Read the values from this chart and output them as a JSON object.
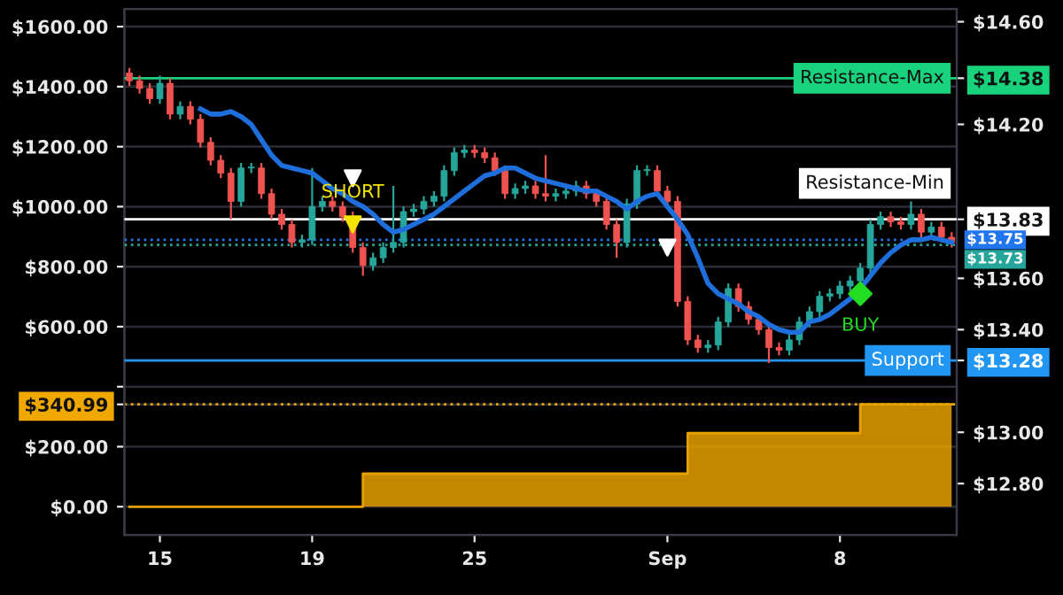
{
  "chart_data": {
    "type": "candlestick",
    "categories": [
      null,
      null,
      null,
      "15",
      null,
      null,
      null,
      null,
      null,
      null,
      null,
      null,
      null,
      null,
      null,
      null,
      null,
      null,
      "19",
      null,
      null,
      null,
      null,
      null,
      null,
      null,
      null,
      null,
      null,
      null,
      null,
      null,
      null,
      null,
      "25",
      null,
      null,
      null,
      null,
      null,
      null,
      null,
      null,
      null,
      null,
      null,
      null,
      null,
      null,
      null,
      null,
      null,
      null,
      "Sep",
      null,
      null,
      null,
      null,
      null,
      null,
      null,
      null,
      null,
      null,
      null,
      null,
      null,
      null,
      null,
      null,
      "8",
      null,
      null,
      null,
      null,
      null,
      null,
      null,
      null,
      null,
      null,
      null
    ],
    "ylim": [
      12.6,
      14.65
    ],
    "yticks": [
      {
        "value": 12.8,
        "label": "$12.80"
      },
      {
        "value": 13.0,
        "label": "$13.00"
      },
      {
        "value": 13.28,
        "label": "$13.28"
      },
      {
        "value": 13.4,
        "label": "$13.40"
      },
      {
        "value": 13.6,
        "label": "$13.60"
      },
      {
        "value": 13.83,
        "label": "$13.83"
      },
      {
        "value": 14.2,
        "label": "$14.20"
      },
      {
        "value": 14.38,
        "label": "$14.38"
      },
      {
        "value": 14.6,
        "label": "$14.60"
      }
    ],
    "y2lim": [
      -94,
      1659
    ],
    "y2ticks": [
      {
        "value": 0,
        "label": "$0.00"
      },
      {
        "value": 200,
        "label": "$200.00"
      },
      {
        "value": 340.99,
        "label": "$340.99"
      },
      {
        "value": 400,
        "label": null
      },
      {
        "value": 600,
        "label": "$600.00"
      },
      {
        "value": 800,
        "label": "$800.00"
      },
      {
        "value": 1000,
        "label": "$1000.00"
      },
      {
        "value": 1200,
        "label": "$1200.00"
      },
      {
        "value": 1400,
        "label": "$1400.00"
      },
      {
        "value": 1600,
        "label": "$1600.00"
      }
    ],
    "grid": true,
    "ohlc": [
      [
        14.4,
        14.42,
        14.35,
        14.37
      ],
      [
        14.37,
        14.39,
        14.32,
        14.34
      ],
      [
        14.34,
        14.36,
        14.28,
        14.3
      ],
      [
        14.3,
        14.39,
        14.28,
        14.36
      ],
      [
        14.36,
        14.38,
        14.22,
        14.24
      ],
      [
        14.24,
        14.29,
        14.22,
        14.27
      ],
      [
        14.27,
        14.29,
        14.2,
        14.22
      ],
      [
        14.22,
        14.24,
        14.11,
        14.13
      ],
      [
        14.13,
        14.15,
        14.04,
        14.06
      ],
      [
        14.06,
        14.08,
        13.99,
        14.01
      ],
      [
        14.01,
        14.03,
        13.83,
        13.9
      ],
      [
        13.9,
        14.05,
        13.88,
        14.03
      ],
      [
        14.03,
        14.05,
        14.01,
        14.03
      ],
      [
        14.03,
        14.05,
        13.91,
        13.93
      ],
      [
        13.93,
        13.95,
        13.83,
        13.85
      ],
      [
        13.85,
        13.87,
        13.79,
        13.81
      ],
      [
        13.81,
        13.83,
        13.72,
        13.74
      ],
      [
        13.74,
        13.77,
        13.72,
        13.75
      ],
      [
        13.75,
        14.03,
        13.73,
        13.88
      ],
      [
        13.88,
        13.92,
        13.86,
        13.9
      ],
      [
        13.9,
        13.92,
        13.86,
        13.88
      ],
      [
        13.88,
        13.9,
        13.82,
        13.84
      ],
      [
        13.84,
        13.86,
        13.7,
        13.72
      ],
      [
        13.72,
        13.74,
        13.61,
        13.65
      ],
      [
        13.65,
        13.7,
        13.63,
        13.68
      ],
      [
        13.68,
        13.74,
        13.66,
        13.72
      ],
      [
        13.72,
        13.96,
        13.7,
        13.74
      ],
      [
        13.74,
        13.88,
        13.72,
        13.86
      ],
      [
        13.86,
        13.89,
        13.84,
        13.87
      ],
      [
        13.87,
        13.92,
        13.85,
        13.9
      ],
      [
        13.9,
        13.94,
        13.88,
        13.92
      ],
      [
        13.92,
        14.04,
        13.9,
        14.02
      ],
      [
        14.02,
        14.11,
        14.0,
        14.09
      ],
      [
        14.09,
        14.12,
        14.07,
        14.1
      ],
      [
        14.1,
        14.12,
        14.07,
        14.09
      ],
      [
        14.09,
        14.11,
        14.05,
        14.07
      ],
      [
        14.07,
        14.09,
        14.0,
        14.02
      ],
      [
        14.02,
        14.04,
        13.91,
        13.93
      ],
      [
        13.93,
        13.97,
        13.91,
        13.95
      ],
      [
        13.95,
        13.98,
        13.93,
        13.96
      ],
      [
        13.96,
        13.98,
        13.91,
        13.93
      ],
      [
        13.93,
        14.08,
        13.9,
        13.92
      ],
      [
        13.92,
        13.95,
        13.9,
        13.93
      ],
      [
        13.93,
        13.96,
        13.91,
        13.94
      ],
      [
        13.94,
        13.98,
        13.92,
        13.96
      ],
      [
        13.96,
        13.98,
        13.91,
        13.93
      ],
      [
        13.93,
        13.95,
        13.88,
        13.9
      ],
      [
        13.9,
        13.92,
        13.79,
        13.81
      ],
      [
        13.81,
        13.83,
        13.68,
        13.74
      ],
      [
        13.74,
        13.91,
        13.72,
        13.89
      ],
      [
        13.89,
        14.04,
        13.87,
        14.02
      ],
      [
        14.02,
        14.04,
        14.0,
        14.02
      ],
      [
        14.02,
        14.04,
        13.92,
        13.94
      ],
      [
        13.94,
        13.96,
        13.88,
        13.9
      ],
      [
        13.9,
        13.92,
        13.49,
        13.51
      ],
      [
        13.51,
        13.53,
        13.34,
        13.36
      ],
      [
        13.36,
        13.38,
        13.31,
        13.33
      ],
      [
        13.33,
        13.36,
        13.31,
        13.34
      ],
      [
        13.34,
        13.45,
        13.32,
        13.43
      ],
      [
        13.43,
        13.58,
        13.41,
        13.56
      ],
      [
        13.56,
        13.58,
        13.47,
        13.49
      ],
      [
        13.49,
        13.51,
        13.42,
        13.44
      ],
      [
        13.44,
        13.46,
        13.38,
        13.4
      ],
      [
        13.4,
        13.42,
        13.27,
        13.33
      ],
      [
        13.33,
        13.35,
        13.3,
        13.32
      ],
      [
        13.32,
        13.38,
        13.3,
        13.36
      ],
      [
        13.36,
        13.45,
        13.34,
        13.43
      ],
      [
        13.43,
        13.49,
        13.41,
        13.47
      ],
      [
        13.47,
        13.55,
        13.45,
        13.53
      ],
      [
        13.53,
        13.56,
        13.51,
        13.54
      ],
      [
        13.54,
        13.59,
        13.52,
        13.57
      ],
      [
        13.57,
        13.61,
        13.55,
        13.59
      ],
      [
        13.59,
        13.66,
        13.57,
        13.64
      ],
      [
        13.64,
        13.83,
        13.62,
        13.81
      ],
      [
        13.81,
        13.86,
        13.79,
        13.84
      ],
      [
        13.84,
        13.86,
        13.8,
        13.82
      ],
      [
        13.82,
        13.84,
        13.79,
        13.81
      ],
      [
        13.81,
        13.9,
        13.79,
        13.85
      ],
      [
        13.85,
        13.87,
        13.76,
        13.78
      ],
      [
        13.78,
        13.82,
        13.76,
        13.8
      ],
      [
        13.8,
        13.82,
        13.74,
        13.76
      ],
      [
        13.76,
        13.78,
        13.72,
        13.74
      ]
    ],
    "series": [
      {
        "type": "line",
        "color": "#1e6fdc",
        "values": [
          null,
          null,
          null,
          null,
          null,
          null,
          null,
          14.26,
          14.24,
          14.24,
          14.25,
          14.23,
          14.2,
          14.14,
          14.08,
          14.04,
          14.03,
          14.02,
          14.01,
          13.98,
          13.95,
          13.93,
          13.9,
          13.88,
          13.85,
          13.81,
          13.78,
          13.79,
          13.81,
          13.83,
          13.85,
          13.88,
          13.91,
          13.94,
          13.97,
          14.0,
          14.01,
          14.03,
          14.03,
          14.01,
          13.99,
          13.98,
          13.97,
          13.96,
          13.95,
          13.94,
          13.94,
          13.92,
          13.9,
          13.87,
          13.9,
          13.92,
          13.93,
          13.88,
          13.83,
          13.77,
          13.68,
          13.58,
          13.54,
          13.52,
          13.5,
          13.47,
          13.45,
          13.42,
          13.4,
          13.39,
          13.39,
          13.43,
          13.44,
          13.46,
          13.49,
          13.52,
          13.56,
          13.61,
          13.66,
          13.7,
          13.73,
          13.75,
          13.75,
          13.76,
          13.75,
          13.74
        ]
      },
      {
        "type": "step",
        "axis": "y2",
        "color": "#e6a000",
        "values": [
          0,
          0,
          0,
          0,
          0,
          0,
          0,
          0,
          0,
          0,
          0,
          0,
          0,
          0,
          0,
          0,
          0,
          0,
          0,
          0,
          0,
          0,
          0,
          110,
          110,
          110,
          110,
          110,
          110,
          110,
          110,
          110,
          110,
          110,
          110,
          110,
          110,
          110,
          110,
          110,
          110,
          110,
          110,
          110,
          110,
          110,
          110,
          110,
          110,
          110,
          110,
          110,
          110,
          110,
          110,
          245,
          245,
          245,
          245,
          245,
          245,
          245,
          245,
          245,
          245,
          245,
          245,
          245,
          245,
          245,
          245,
          245,
          341,
          341,
          341,
          341,
          341,
          341,
          341,
          341,
          341,
          341
        ]
      },
      {
        "type": "scatter",
        "color": "#ffffff",
        "marker": "triangle",
        "values": [
          null,
          null,
          null,
          null,
          null,
          null,
          null,
          null,
          null,
          null,
          null,
          null,
          null,
          null,
          null,
          null,
          null,
          null,
          null,
          null,
          null,
          null,
          13.99,
          null,
          null,
          null,
          null,
          null,
          null,
          null,
          null,
          null,
          null,
          null,
          null,
          null,
          null,
          null,
          null,
          null,
          null,
          null,
          null,
          null,
          null,
          null,
          null,
          null,
          null,
          null,
          null,
          null,
          null,
          13.72,
          null,
          null,
          null,
          null,
          null,
          null,
          null,
          null,
          null,
          null,
          null,
          null,
          null,
          null,
          null,
          null,
          null,
          null,
          null,
          null,
          null,
          null,
          null,
          null,
          null,
          null,
          null,
          null
        ]
      },
      {
        "type": "scatter",
        "color": "#f5e400",
        "marker": "triangle",
        "values": [
          null,
          null,
          null,
          null,
          null,
          null,
          null,
          null,
          null,
          null,
          null,
          null,
          null,
          null,
          null,
          null,
          null,
          null,
          null,
          null,
          null,
          null,
          13.81,
          null,
          null,
          null,
          null,
          null,
          null,
          null,
          null,
          null,
          null,
          null,
          null,
          null,
          null,
          null,
          null,
          null,
          null,
          null,
          null,
          null,
          null,
          null,
          null,
          null,
          null,
          null,
          null,
          null,
          null,
          null,
          null,
          null,
          null,
          null,
          null,
          null,
          null,
          null,
          null,
          null,
          null,
          null,
          null,
          null,
          null,
          null,
          null,
          null,
          null,
          null,
          null,
          null,
          null,
          null,
          null,
          null,
          null,
          null
        ]
      },
      {
        "type": "scatter",
        "color": "#22dd22",
        "marker": "diamond",
        "values": [
          null,
          null,
          null,
          null,
          null,
          null,
          null,
          null,
          null,
          null,
          null,
          null,
          null,
          null,
          null,
          null,
          null,
          null,
          null,
          null,
          null,
          null,
          null,
          null,
          null,
          null,
          null,
          null,
          null,
          null,
          null,
          null,
          null,
          null,
          null,
          null,
          null,
          null,
          null,
          null,
          null,
          null,
          null,
          null,
          null,
          null,
          null,
          null,
          null,
          null,
          null,
          null,
          null,
          null,
          null,
          null,
          null,
          null,
          null,
          null,
          null,
          null,
          null,
          null,
          null,
          null,
          null,
          null,
          null,
          null,
          null,
          null,
          13.54,
          null,
          null,
          null,
          null,
          null,
          null,
          null,
          null,
          null
        ]
      }
    ],
    "ref_lines": [
      {
        "axis": "y",
        "value": 14.38,
        "label": "Resistance-Max",
        "color": "#19d37c"
      },
      {
        "axis": "y",
        "value": 13.83,
        "label": "Resistance-Min",
        "color": "#ffffff"
      },
      {
        "axis": "y",
        "value": 13.75,
        "label": "$13.75",
        "color": "#2176ee",
        "line_style": "dotted"
      },
      {
        "axis": "y",
        "value": 13.73,
        "label": "$13.73",
        "color": "#26a69a",
        "line_style": "dotted"
      },
      {
        "axis": "y",
        "value": 13.28,
        "label": "Support",
        "color": "#2196f3"
      },
      {
        "axis": "y2",
        "value": 340.99,
        "color": "#f0a800",
        "line_style": "dotted"
      }
    ],
    "annotations": [
      "SHORT",
      "BUY"
    ]
  }
}
